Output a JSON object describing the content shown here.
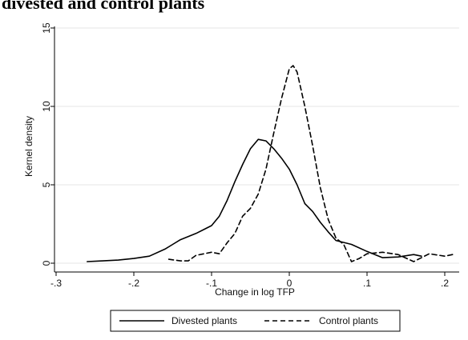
{
  "title": "divested and control plants",
  "chart_data": {
    "type": "line",
    "xlabel": "Change in log TFP",
    "ylabel": "Kernel density",
    "xlim": [
      -0.3,
      0.22
    ],
    "ylim": [
      0,
      15
    ],
    "x_ticks": [
      -0.3,
      -0.2,
      -0.1,
      0,
      0.1,
      0.2
    ],
    "x_tick_labels": [
      "-.3",
      "-.2",
      "-.1",
      "0",
      ".1",
      ".2"
    ],
    "y_ticks": [
      0,
      5,
      10,
      15
    ],
    "y_tick_labels": [
      "0",
      "5",
      "10",
      "15"
    ],
    "grid": "horizontal",
    "legend_position": "bottom",
    "series": [
      {
        "name": "Divested plants",
        "style": "solid",
        "color": "#000000",
        "x": [
          -0.26,
          -0.24,
          -0.22,
          -0.2,
          -0.18,
          -0.16,
          -0.15,
          -0.14,
          -0.12,
          -0.1,
          -0.09,
          -0.08,
          -0.07,
          -0.06,
          -0.05,
          -0.04,
          -0.03,
          -0.02,
          -0.01,
          0,
          0.01,
          0.02,
          0.03,
          0.04,
          0.05,
          0.06,
          0.08,
          0.1,
          0.12,
          0.14,
          0.16,
          0.17
        ],
        "values": [
          0.1,
          0.15,
          0.2,
          0.3,
          0.45,
          0.9,
          1.2,
          1.5,
          1.9,
          2.4,
          3.0,
          4.0,
          5.2,
          6.3,
          7.3,
          7.9,
          7.8,
          7.3,
          6.7,
          6.0,
          5.0,
          3.8,
          3.3,
          2.6,
          2.0,
          1.45,
          1.2,
          0.75,
          0.35,
          0.4,
          0.55,
          0.45
        ]
      },
      {
        "name": "Control plants",
        "style": "dashed",
        "color": "#000000",
        "x": [
          -0.155,
          -0.14,
          -0.13,
          -0.12,
          -0.1,
          -0.09,
          -0.08,
          -0.07,
          -0.06,
          -0.05,
          -0.04,
          -0.03,
          -0.02,
          -0.01,
          0,
          0.005,
          0.01,
          0.02,
          0.03,
          0.04,
          0.05,
          0.06,
          0.07,
          0.08,
          0.09,
          0.1,
          0.12,
          0.14,
          0.16,
          0.18,
          0.2,
          0.21
        ],
        "values": [
          0.25,
          0.15,
          0.15,
          0.5,
          0.7,
          0.6,
          1.3,
          1.9,
          3.0,
          3.5,
          4.4,
          6.0,
          8.3,
          10.5,
          12.4,
          12.6,
          12.2,
          10.0,
          7.5,
          4.8,
          2.8,
          1.6,
          1.2,
          0.1,
          0.3,
          0.6,
          0.7,
          0.55,
          0.1,
          0.6,
          0.45,
          0.55
        ]
      }
    ]
  }
}
